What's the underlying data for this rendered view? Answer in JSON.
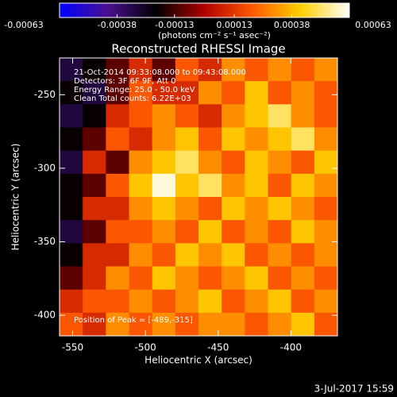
{
  "chart_data": {
    "type": "heatmap",
    "title": "Reconstructed RHESSI Image",
    "xlabel": "Heliocentric X (arcsec)",
    "ylabel": "Heliocentric Y (arcsec)",
    "xlim": [
      -559,
      -368
    ],
    "ylim": [
      -414,
      -225
    ],
    "xticks": [
      -550,
      -500,
      -450,
      -400
    ],
    "yticks": [
      -250,
      -300,
      -350,
      -400
    ],
    "colormap": [
      "#0000ff",
      "#4a1090",
      "#000000",
      "#b00000",
      "#ff5a00",
      "#ffd000",
      "#ffffff"
    ],
    "colorbar": {
      "lim": [
        -0.00063,
        0.00063
      ],
      "ticks": [
        -0.00063,
        -0.00038,
        -0.00013,
        0.00013,
        0.00038,
        0.00063
      ],
      "label": "(photons cm⁻² s⁻¹ asec⁻²)"
    },
    "annotations": [
      "21-Oct-2014 09:33:08.000 to 09:43:08.000",
      "Detectors: 3F 6F 9F, Att 0",
      "Energy Range: 25.0 - 50.0 keV",
      "Clean    Total counts: 6.22E+03",
      "Position of Peak = [-489,-315]"
    ],
    "footer": "3-Jul-2017 15:59",
    "z": [
      [
        -0.0003,
        -0.0002,
        -0.0001,
        0.0001,
        -0.0001,
        0.0002,
        0.0001,
        0.0003,
        0.0002,
        0.0003,
        0.0002,
        0.0003
      ],
      [
        -0.0002,
        -0.0003,
        -0.0001,
        0.0002,
        0.0001,
        0.0001,
        0.0003,
        0.0002,
        0.0004,
        0.0002,
        0.0003,
        0.0002
      ],
      [
        -0.0003,
        -0.0002,
        0.0001,
        0.0002,
        0.0003,
        0.0002,
        0.0001,
        0.0003,
        0.0004,
        0.0005,
        0.0003,
        0.0002
      ],
      [
        -0.0002,
        -0.0001,
        0.0002,
        0.0001,
        0.0003,
        0.0004,
        0.0002,
        0.0004,
        0.0003,
        0.0004,
        0.0005,
        0.0003
      ],
      [
        -0.0003,
        0.0001,
        -0.0001,
        0.0003,
        0.0004,
        0.0005,
        0.0003,
        0.0002,
        0.0004,
        0.0003,
        0.0002,
        0.0004
      ],
      [
        -0.0002,
        -0.0001,
        0.0002,
        0.0004,
        0.0006,
        0.0004,
        0.0005,
        0.0003,
        0.0004,
        0.0002,
        0.0004,
        0.0003
      ],
      [
        -0.0002,
        0.0001,
        0.0001,
        0.0003,
        0.0004,
        0.0003,
        0.0002,
        0.0004,
        0.0003,
        0.0004,
        0.0003,
        0.0002
      ],
      [
        -0.0003,
        -0.0001,
        0.0002,
        0.0002,
        0.0003,
        0.0002,
        0.0004,
        0.0002,
        0.0003,
        0.0002,
        0.0004,
        0.0003
      ],
      [
        -0.0002,
        0.0001,
        0.0001,
        0.0003,
        0.0002,
        0.0004,
        0.0003,
        0.0004,
        0.0002,
        0.0003,
        0.0002,
        0.0003
      ],
      [
        -0.0001,
        0.0001,
        0.0003,
        0.0002,
        0.0004,
        0.0003,
        0.0002,
        0.0003,
        0.0004,
        0.0002,
        0.0003,
        0.0002
      ],
      [
        0.0001,
        0.0002,
        0.0002,
        0.0003,
        0.0002,
        0.0003,
        0.0004,
        0.0002,
        0.0003,
        0.0004,
        0.0002,
        0.0003
      ],
      [
        0.0002,
        0.0001,
        0.0003,
        0.0002,
        0.0003,
        0.0002,
        0.0003,
        0.0003,
        0.0002,
        0.0003,
        0.0004,
        0.0002
      ]
    ]
  }
}
